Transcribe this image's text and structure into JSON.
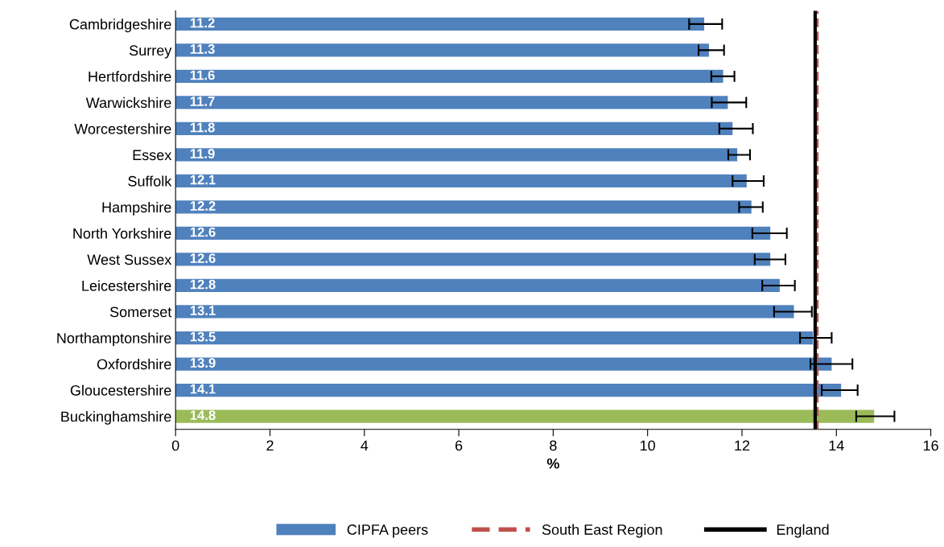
{
  "chart_data": {
    "type": "bar",
    "orientation": "horizontal",
    "xlabel": "%",
    "categories": [
      "Cambridgeshire",
      "Surrey",
      "Hertfordshire",
      "Warwickshire",
      "Worcestershire",
      "Essex",
      "Suffolk",
      "Hampshire",
      "North Yorkshire",
      "West Sussex",
      "Leicestershire",
      "Somerset",
      "Northamptonshire",
      "Oxfordshire",
      "Gloucestershire",
      "Buckinghamshire"
    ],
    "series": [
      {
        "name": "CIPFA peers",
        "color": "#4f81bd",
        "colors": [
          "#4f81bd",
          "#4f81bd",
          "#4f81bd",
          "#4f81bd",
          "#4f81bd",
          "#4f81bd",
          "#4f81bd",
          "#4f81bd",
          "#4f81bd",
          "#4f81bd",
          "#4f81bd",
          "#4f81bd",
          "#4f81bd",
          "#4f81bd",
          "#4f81bd",
          "#9bbb59"
        ],
        "values": [
          11.2,
          11.3,
          11.6,
          11.7,
          11.8,
          11.9,
          12.1,
          12.2,
          12.6,
          12.6,
          12.8,
          13.1,
          13.5,
          13.9,
          14.1,
          14.8
        ],
        "errors": [
          [
            10.88,
            11.58
          ],
          [
            11.08,
            11.62
          ],
          [
            11.35,
            11.84
          ],
          [
            11.36,
            12.09
          ],
          [
            11.52,
            12.23
          ],
          [
            11.71,
            12.17
          ],
          [
            11.8,
            12.46
          ],
          [
            11.94,
            12.44
          ],
          [
            12.22,
            12.95
          ],
          [
            12.27,
            12.92
          ],
          [
            12.43,
            13.12
          ],
          [
            12.68,
            13.48
          ],
          [
            13.23,
            13.9
          ],
          [
            13.45,
            14.34
          ],
          [
            13.69,
            14.45
          ],
          [
            14.42,
            15.23
          ]
        ]
      }
    ],
    "data_labels": true,
    "xlim": [
      0,
      16
    ],
    "xticks": [
      0,
      2,
      4,
      6,
      8,
      10,
      12,
      14,
      16
    ],
    "ref_lines": [
      {
        "axis": "x",
        "value": 13.6,
        "label": "South East Region",
        "color": "#c0504d",
        "line_style": "dashed"
      },
      {
        "axis": "x",
        "value": 13.55,
        "label": "England",
        "color": "#000000",
        "line_style": "solid"
      }
    ],
    "grid": false,
    "legend": "bottom"
  }
}
